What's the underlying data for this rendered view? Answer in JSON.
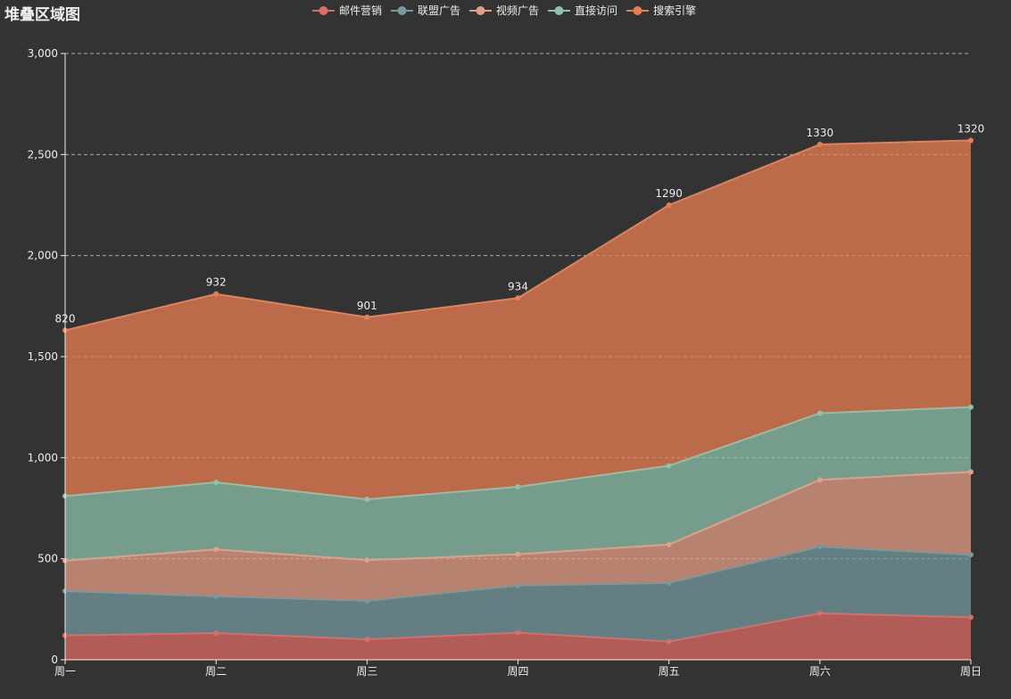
{
  "chart_data": {
    "type": "area",
    "stacked": true,
    "title": "堆叠区域图",
    "categories": [
      "周一",
      "周二",
      "周三",
      "周四",
      "周五",
      "周六",
      "周日"
    ],
    "ylim": [
      0,
      3000
    ],
    "yticks": [
      0,
      500,
      1000,
      1500,
      2000,
      2500,
      3000
    ],
    "ytick_labels": [
      "0",
      "500",
      "1,000",
      "1,500",
      "2,000",
      "2,500",
      "3,000"
    ],
    "grid": true,
    "legend_position": "top-center",
    "series": [
      {
        "name": "邮件营销",
        "color": "#dd6b66",
        "values": [
          120,
          132,
          101,
          134,
          90,
          230,
          210
        ]
      },
      {
        "name": "联盟广告",
        "color": "#759aa0",
        "values": [
          220,
          182,
          191,
          234,
          290,
          330,
          310
        ]
      },
      {
        "name": "视频广告",
        "color": "#e69d87",
        "values": [
          150,
          232,
          201,
          154,
          190,
          330,
          410
        ]
      },
      {
        "name": "直接访问",
        "color": "#8dc1a9",
        "values": [
          320,
          332,
          301,
          334,
          390,
          330,
          320
        ]
      },
      {
        "name": "搜索引擎",
        "color": "#ea7e53",
        "values": [
          820,
          932,
          901,
          934,
          1290,
          1330,
          1320
        ],
        "show_labels": true
      }
    ]
  }
}
